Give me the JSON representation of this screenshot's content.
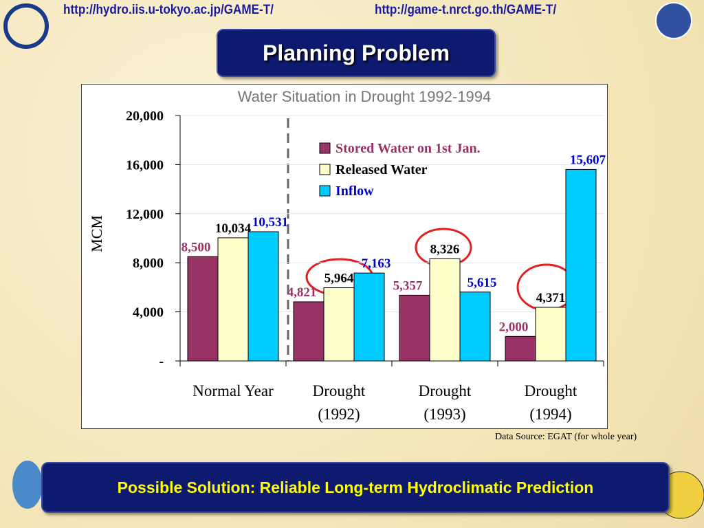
{
  "header": {
    "url_left": "http://hydro.iis.u-tokyo.ac.jp/GAME-T/",
    "url_right": "http://game-t.nrct.go.th/GAME-T/"
  },
  "slide_title": "Planning Problem",
  "chart_data": {
    "type": "bar",
    "title": "Water Situation in Drought 1992-1994",
    "y_label": "MCM",
    "categories": [
      "Normal Year",
      "Drought (1992)",
      "Drought (1993)",
      "Drought (1994)"
    ],
    "series": [
      {
        "name": "Stored Water on 1st Jan.",
        "color": "#993366",
        "label_color": "#993366",
        "values": [
          8500,
          4821,
          5357,
          2000
        ],
        "value_labels": [
          "8,500",
          "4,821",
          "5,357",
          "2,000"
        ]
      },
      {
        "name": "Released Water",
        "color": "#ffffcc",
        "label_color": "#000000",
        "values": [
          10034,
          5964,
          8326,
          4371
        ],
        "value_labels": [
          "10,034",
          "5,964",
          "8,326",
          "4,371"
        ]
      },
      {
        "name": "Inflow",
        "color": "#00ccff",
        "label_color": "#0000cc",
        "values": [
          10531,
          7163,
          5615,
          15607
        ],
        "value_labels": [
          "10,531",
          "7,163",
          "5,615",
          "15,607"
        ]
      }
    ],
    "ylim": [
      0,
      20000
    ],
    "yticks": [
      {
        "value": 0,
        "label": "-"
      },
      {
        "value": 4000,
        "label": "4,000"
      },
      {
        "value": 8000,
        "label": "8,000"
      },
      {
        "value": 12000,
        "label": "12,000"
      },
      {
        "value": 16000,
        "label": "16,000"
      },
      {
        "value": 20000,
        "label": "20,000"
      }
    ],
    "grid": true,
    "legend": "top"
  },
  "source_note": "Data Source: EGAT (for whole year)",
  "footer_text": "Possible Solution: Reliable Long-term Hydroclimatic Prediction"
}
